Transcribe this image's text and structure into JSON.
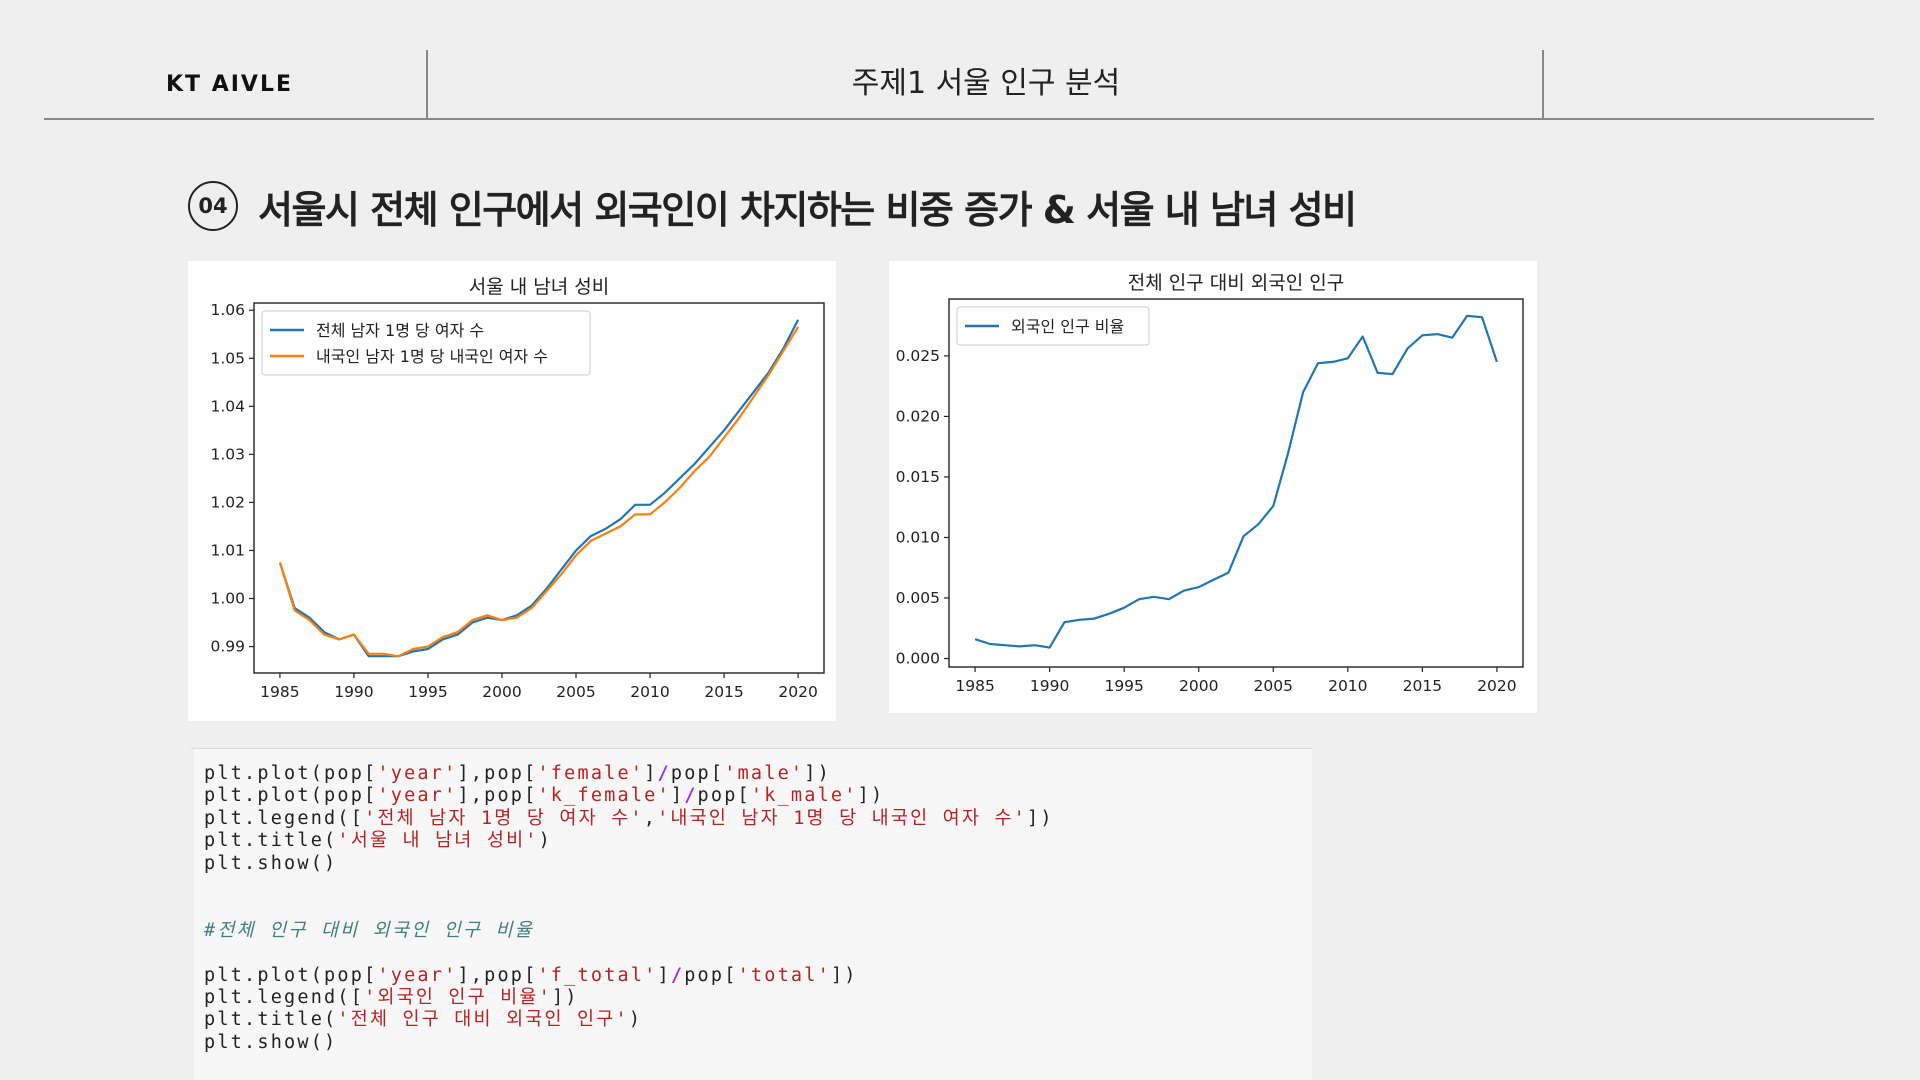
{
  "header": {
    "brand": "KT AIVLE",
    "topic": "주제1 서울 인구 분석"
  },
  "section": {
    "number": "04",
    "title": "서울시 전체 인구에서 외국인이 차지하는 비중 증가 & 서울 내 남녀 성비"
  },
  "colors": {
    "series1": "#1f77b4",
    "series2": "#ff7f0e",
    "background": "#efefef"
  },
  "chart_data": [
    {
      "type": "line",
      "title": "서울 내 남녀 성비",
      "xlabel": "",
      "ylabel": "",
      "x": [
        1985,
        1986,
        1987,
        1988,
        1989,
        1990,
        1991,
        1992,
        1993,
        1994,
        1995,
        1996,
        1997,
        1998,
        1999,
        2000,
        2001,
        2002,
        2003,
        2004,
        2005,
        2006,
        2007,
        2008,
        2009,
        2010,
        2011,
        2012,
        2013,
        2014,
        2015,
        2016,
        2017,
        2018,
        2019,
        2020
      ],
      "xlim": [
        1983.25,
        2021.75
      ],
      "ylim": [
        0.9845,
        1.0615
      ],
      "xticks": [
        1985,
        1990,
        1995,
        2000,
        2005,
        2010,
        2015,
        2020
      ],
      "xtick_labels": [
        "1985",
        "1990",
        "1995",
        "2000",
        "2005",
        "2010",
        "2015",
        "2020"
      ],
      "yticks": [
        0.99,
        1.0,
        1.01,
        1.02,
        1.03,
        1.04,
        1.05,
        1.06
      ],
      "ytick_labels": [
        "0.99",
        "1.00",
        "1.01",
        "1.02",
        "1.03",
        "1.04",
        "1.05",
        "1.06"
      ],
      "legend_position": "upper-left",
      "series": [
        {
          "name": "전체 남자 1명 당 여자 수",
          "values": [
            1.0075,
            0.998,
            0.996,
            0.993,
            0.9915,
            0.9925,
            0.988,
            0.988,
            0.988,
            0.989,
            0.9895,
            0.9915,
            0.9925,
            0.995,
            0.996,
            0.9955,
            0.9965,
            0.9985,
            1.002,
            1.006,
            1.01,
            1.013,
            1.0145,
            1.0165,
            1.0195,
            1.0195,
            1.022,
            1.025,
            1.028,
            1.0315,
            1.035,
            1.039,
            1.043,
            1.047,
            1.052,
            1.058
          ]
        },
        {
          "name": "내국인 남자 1명 당 내국인 여자 수",
          "values": [
            1.0075,
            0.9975,
            0.9955,
            0.9925,
            0.9915,
            0.9925,
            0.9885,
            0.9885,
            0.988,
            0.9895,
            0.99,
            0.992,
            0.993,
            0.9955,
            0.9965,
            0.9955,
            0.996,
            0.998,
            1.0015,
            1.005,
            1.009,
            1.012,
            1.0135,
            1.015,
            1.0175,
            1.0175,
            1.02,
            1.023,
            1.0265,
            1.0295,
            1.0335,
            1.0375,
            1.042,
            1.0465,
            1.0515,
            1.0565
          ]
        }
      ]
    },
    {
      "type": "line",
      "title": "전체 인구 대비 외국인 인구",
      "xlabel": "",
      "ylabel": "",
      "x": [
        1985,
        1986,
        1987,
        1988,
        1989,
        1990,
        1991,
        1992,
        1993,
        1994,
        1995,
        1996,
        1997,
        1998,
        1999,
        2000,
        2001,
        2002,
        2003,
        2004,
        2005,
        2006,
        2007,
        2008,
        2009,
        2010,
        2011,
        2012,
        2013,
        2014,
        2015,
        2016,
        2017,
        2018,
        2019,
        2020
      ],
      "xlim": [
        1983.25,
        2021.75
      ],
      "ylim": [
        -0.0007,
        0.0297
      ],
      "xticks": [
        1985,
        1990,
        1995,
        2000,
        2005,
        2010,
        2015,
        2020
      ],
      "xtick_labels": [
        "1985",
        "1990",
        "1995",
        "2000",
        "2005",
        "2010",
        "2015",
        "2020"
      ],
      "yticks": [
        0.0,
        0.005,
        0.01,
        0.015,
        0.02,
        0.025
      ],
      "ytick_labels": [
        "0.000",
        "0.005",
        "0.010",
        "0.015",
        "0.020",
        "0.025"
      ],
      "legend_position": "upper-left",
      "series": [
        {
          "name": "외국인 인구 비율",
          "values": [
            0.0016,
            0.0012,
            0.0011,
            0.001,
            0.0011,
            0.0009,
            0.003,
            0.0032,
            0.0033,
            0.0037,
            0.0042,
            0.0049,
            0.0051,
            0.0049,
            0.0056,
            0.0059,
            0.0065,
            0.0071,
            0.0101,
            0.0111,
            0.0126,
            0.017,
            0.022,
            0.0244,
            0.0245,
            0.0248,
            0.0266,
            0.0236,
            0.0235,
            0.0256,
            0.0267,
            0.0268,
            0.0265,
            0.0283,
            0.0282,
            0.0245
          ]
        }
      ]
    }
  ],
  "code": {
    "lines": [
      [
        {
          "t": "plt.plot(pop["
        },
        {
          "t": "'year'",
          "c": "str"
        },
        {
          "t": "],pop["
        },
        {
          "t": "'female'",
          "c": "str"
        },
        {
          "t": "]"
        },
        {
          "t": "/",
          "c": "op"
        },
        {
          "t": "pop["
        },
        {
          "t": "'male'",
          "c": "str"
        },
        {
          "t": "])"
        }
      ],
      [
        {
          "t": "plt.plot(pop["
        },
        {
          "t": "'year'",
          "c": "str"
        },
        {
          "t": "],pop["
        },
        {
          "t": "'k_female'",
          "c": "str"
        },
        {
          "t": "]"
        },
        {
          "t": "/",
          "c": "op"
        },
        {
          "t": "pop["
        },
        {
          "t": "'k_male'",
          "c": "str"
        },
        {
          "t": "])"
        }
      ],
      [
        {
          "t": "plt.legend(["
        },
        {
          "t": "'전체 남자 1명 당 여자 수'",
          "c": "str"
        },
        {
          "t": ","
        },
        {
          "t": "'내국인 남자 1명 당 내국인 여자 수'",
          "c": "str"
        },
        {
          "t": "])"
        }
      ],
      [
        {
          "t": "plt.title("
        },
        {
          "t": "'서울 내 남녀 성비'",
          "c": "str"
        },
        {
          "t": ")"
        }
      ],
      [
        {
          "t": "plt.show()"
        }
      ],
      [],
      [],
      [
        {
          "t": "#전체 인구 대비 외국인 인구 비율",
          "c": "cmt"
        }
      ],
      [],
      [
        {
          "t": "plt.plot(pop["
        },
        {
          "t": "'year'",
          "c": "str"
        },
        {
          "t": "],pop["
        },
        {
          "t": "'f_total'",
          "c": "str"
        },
        {
          "t": "]"
        },
        {
          "t": "/",
          "c": "op"
        },
        {
          "t": "pop["
        },
        {
          "t": "'total'",
          "c": "str"
        },
        {
          "t": "])"
        }
      ],
      [
        {
          "t": "plt.legend(["
        },
        {
          "t": "'외국인 인구 비율'",
          "c": "str"
        },
        {
          "t": "])"
        }
      ],
      [
        {
          "t": "plt.title("
        },
        {
          "t": "'전체 인구 대비 외국인 인구'",
          "c": "str"
        },
        {
          "t": ")"
        }
      ],
      [
        {
          "t": "plt.show()"
        }
      ]
    ]
  }
}
